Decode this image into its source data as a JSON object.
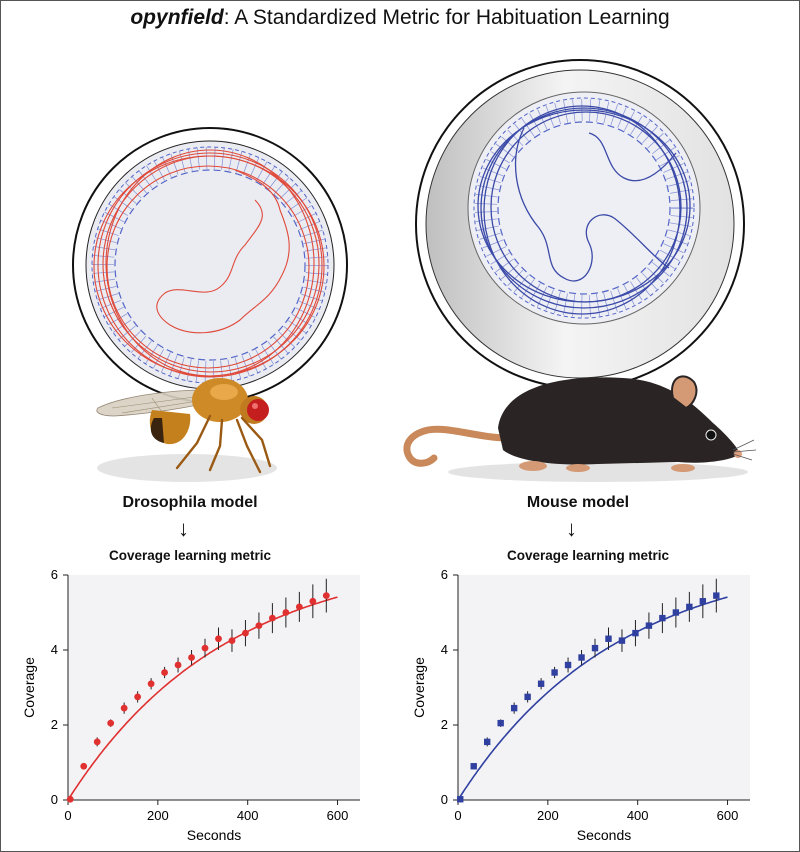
{
  "title": {
    "bold": "opynfield",
    "rest": ": A Standardized Metric for Habituation Learning"
  },
  "models": [
    {
      "label": "Drosophila model",
      "metric": "Coverage learning metric",
      "arrow": "↓"
    },
    {
      "label": "Mouse model",
      "metric": "Coverage learning metric",
      "arrow": "↓"
    }
  ],
  "colors": {
    "fly_track": "#e04a3a",
    "mouse_track": "#3b4aa8",
    "zone_dash": "#5566c8",
    "plot_bg": "#f3f3f6"
  },
  "chart_data": [
    {
      "type": "scatter",
      "title": "",
      "xlabel": "Seconds",
      "ylabel": "Coverage",
      "xlim": [
        0,
        650
      ],
      "ylim": [
        0,
        6
      ],
      "xticks": [
        0,
        200,
        400,
        600
      ],
      "yticks": [
        0,
        2,
        4,
        6
      ],
      "marker": "circle",
      "color": "#e03030",
      "x": [
        5,
        35,
        65,
        95,
        125,
        155,
        185,
        215,
        245,
        275,
        305,
        335,
        365,
        395,
        425,
        455,
        485,
        515,
        545,
        575
      ],
      "y": [
        0.02,
        0.9,
        1.55,
        2.05,
        2.45,
        2.75,
        3.1,
        3.4,
        3.6,
        3.8,
        4.05,
        4.3,
        4.25,
        4.45,
        4.65,
        4.85,
        5.0,
        5.15,
        5.3,
        5.45
      ],
      "err": [
        0.03,
        0.05,
        0.12,
        0.1,
        0.15,
        0.15,
        0.15,
        0.15,
        0.2,
        0.2,
        0.25,
        0.3,
        0.3,
        0.35,
        0.35,
        0.4,
        0.4,
        0.4,
        0.45,
        0.45
      ],
      "fit": "exponential"
    },
    {
      "type": "scatter",
      "title": "",
      "xlabel": "Seconds",
      "ylabel": "Coverage",
      "xlim": [
        0,
        650
      ],
      "ylim": [
        0,
        6
      ],
      "xticks": [
        0,
        200,
        400,
        600
      ],
      "yticks": [
        0,
        2,
        4,
        6
      ],
      "marker": "square",
      "color": "#3040a0",
      "x": [
        5,
        35,
        65,
        95,
        125,
        155,
        185,
        215,
        245,
        275,
        305,
        335,
        365,
        395,
        425,
        455,
        485,
        515,
        545,
        575
      ],
      "y": [
        0.02,
        0.9,
        1.55,
        2.05,
        2.45,
        2.75,
        3.1,
        3.4,
        3.6,
        3.8,
        4.05,
        4.3,
        4.25,
        4.45,
        4.65,
        4.85,
        5.0,
        5.15,
        5.3,
        5.45
      ],
      "err": [
        0.03,
        0.05,
        0.12,
        0.1,
        0.15,
        0.15,
        0.15,
        0.15,
        0.2,
        0.2,
        0.25,
        0.3,
        0.3,
        0.35,
        0.35,
        0.4,
        0.4,
        0.4,
        0.45,
        0.45
      ],
      "fit": "exponential"
    }
  ]
}
